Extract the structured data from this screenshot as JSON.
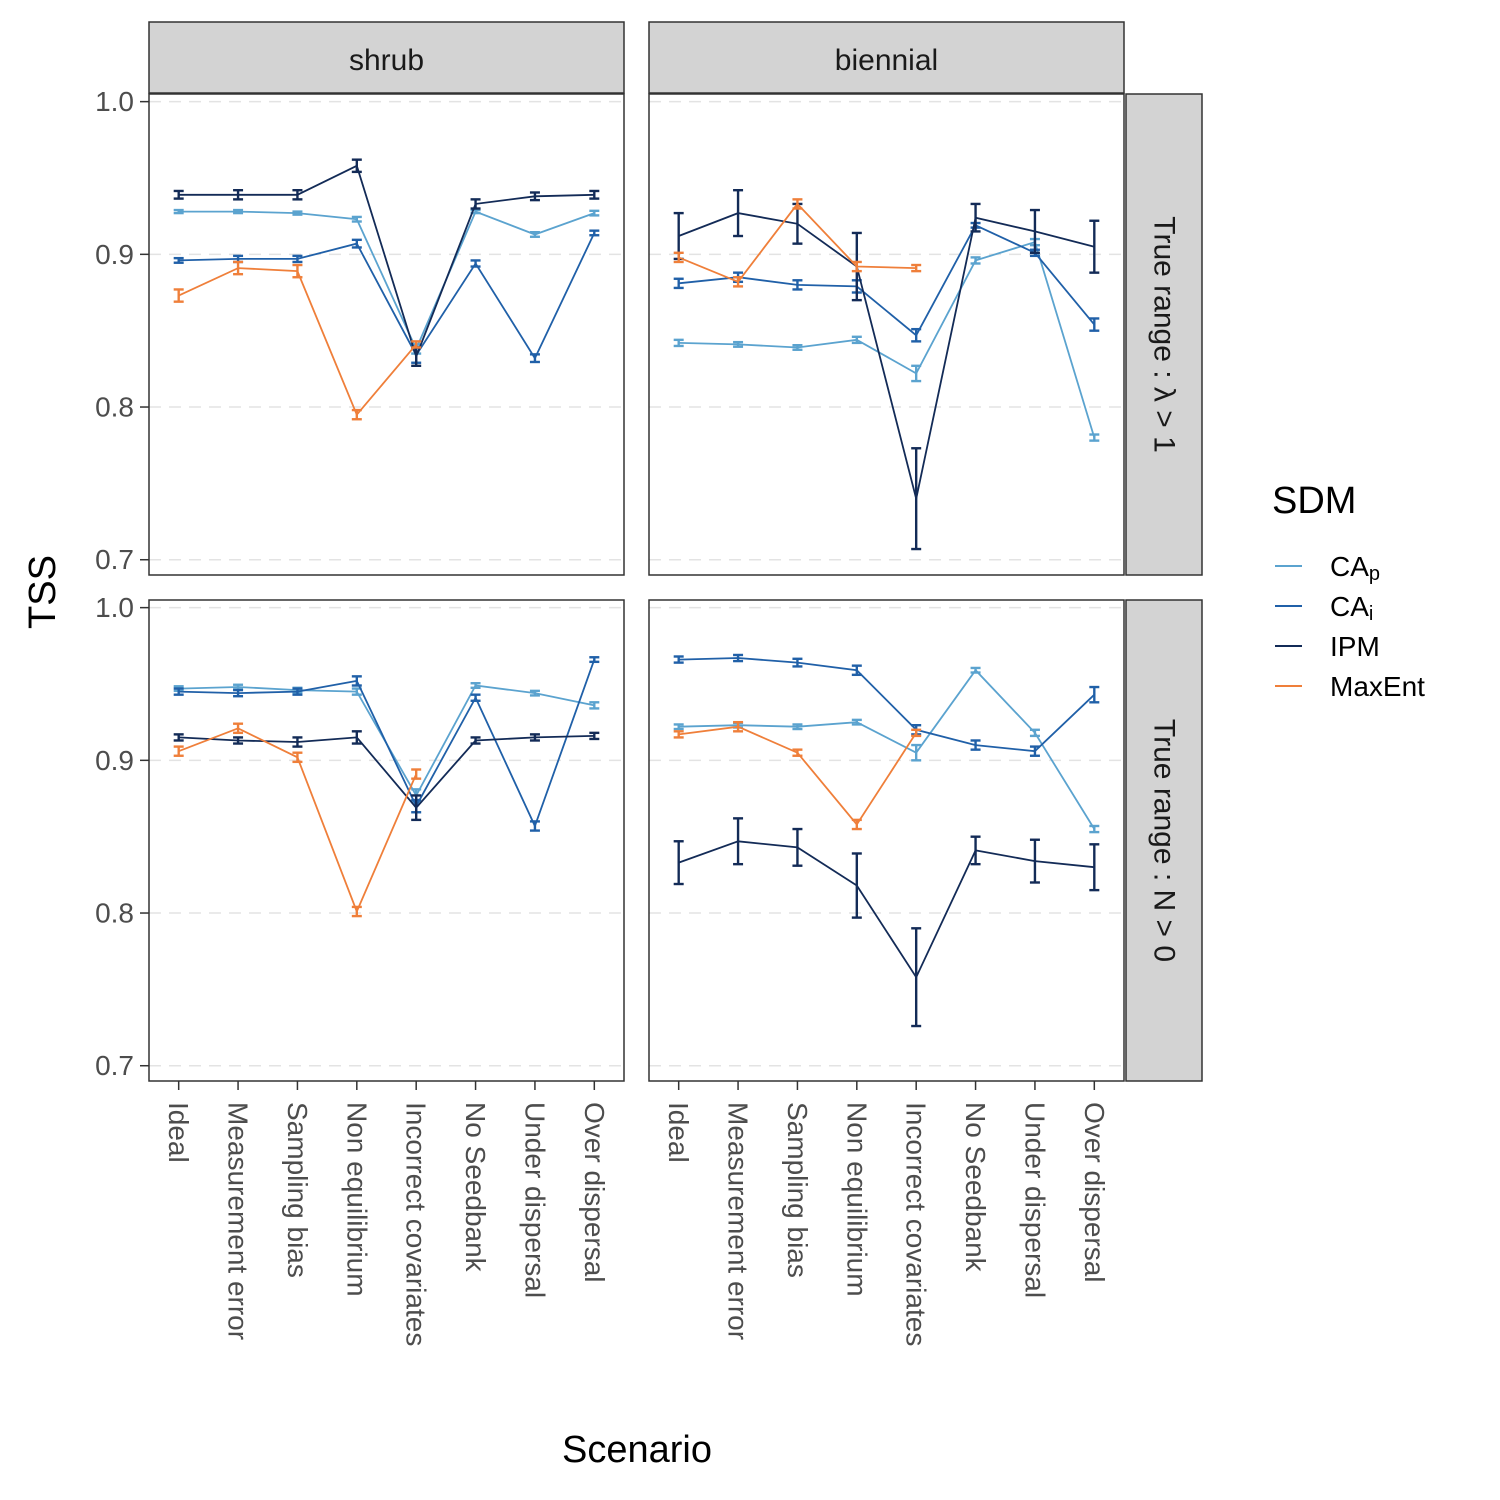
{
  "chart_data": {
    "type": "line",
    "xlabel": "Scenario",
    "ylabel": "TSS",
    "ylim": [
      0.69,
      1.005
    ],
    "y_ticks": [
      "0.7",
      "0.8",
      "0.9",
      "1.0"
    ],
    "categories": [
      "Ideal",
      "Measurement error",
      "Sampling bias",
      "Non equilibrium",
      "Incorrect covariates",
      "No Seedbank",
      "Under dispersal",
      "Over dispersal"
    ],
    "grid": "horizontal dashed",
    "legend": {
      "title": "SDM",
      "position": "right",
      "entries": [
        {
          "key": "CAp",
          "base": "CA",
          "sub": "p",
          "color": "#5ba3cf"
        },
        {
          "key": "CAi",
          "base": "CA",
          "sub": "i",
          "color": "#2060a8"
        },
        {
          "key": "IPM",
          "base": "IPM",
          "sub": "",
          "color": "#132b57"
        },
        {
          "key": "MaxEnt",
          "base": "MaxEnt",
          "sub": "",
          "color": "#ef7f3a"
        }
      ]
    },
    "columns": [
      "shrub",
      "biennial"
    ],
    "rows": [
      "True range : λ > 1",
      "True range : N > 0"
    ],
    "panels": [
      {
        "column": "shrub",
        "row": "True range : λ > 1",
        "series": [
          {
            "name": "CAp",
            "values": [
              0.928,
              0.928,
              0.927,
              0.923,
              0.838,
              0.928,
              0.913,
              0.927
            ],
            "errors": [
              0.001,
              0.001,
              0.001,
              0.0015,
              0.003,
              0.001,
              0.0015,
              0.0015
            ]
          },
          {
            "name": "CAi",
            "values": [
              0.896,
              0.897,
              0.897,
              0.907,
              0.834,
              0.894,
              0.832,
              0.914
            ],
            "errors": [
              0.0015,
              0.002,
              0.002,
              0.0025,
              0.005,
              0.002,
              0.0025,
              0.0015
            ]
          },
          {
            "name": "IPM",
            "values": [
              0.939,
              0.939,
              0.939,
              0.958,
              0.833,
              0.933,
              0.938,
              0.939
            ],
            "errors": [
              0.0025,
              0.003,
              0.003,
              0.004,
              0.006,
              0.003,
              0.0025,
              0.0025
            ]
          },
          {
            "name": "MaxEnt",
            "values": [
              0.873,
              0.891,
              0.889,
              0.795,
              0.841,
              null,
              null,
              null
            ],
            "errors": [
              0.004,
              0.004,
              0.004,
              0.003,
              0.002,
              null,
              null,
              null
            ]
          }
        ]
      },
      {
        "column": "biennial",
        "row": "True range : λ > 1",
        "series": [
          {
            "name": "CAp",
            "values": [
              0.842,
              0.841,
              0.839,
              0.844,
              0.822,
              0.896,
              0.908,
              0.78
            ],
            "errors": [
              0.002,
              0.0015,
              0.0015,
              0.002,
              0.005,
              0.002,
              0.002,
              0.002
            ]
          },
          {
            "name": "CAi",
            "values": [
              0.881,
              0.885,
              0.88,
              0.879,
              0.847,
              0.919,
              0.901,
              0.854
            ],
            "errors": [
              0.003,
              0.003,
              0.003,
              0.004,
              0.004,
              0.0015,
              0.002,
              0.004
            ]
          },
          {
            "name": "IPM",
            "values": [
              0.912,
              0.927,
              0.92,
              0.892,
              0.74,
              0.924,
              0.915,
              0.905
            ],
            "errors": [
              0.015,
              0.015,
              0.013,
              0.022,
              0.033,
              0.009,
              0.014,
              0.017
            ]
          },
          {
            "name": "MaxEnt",
            "values": [
              0.898,
              0.882,
              0.933,
              0.892,
              0.891,
              null,
              null,
              null
            ],
            "errors": [
              0.003,
              0.003,
              0.003,
              0.003,
              0.002,
              null,
              null,
              null
            ]
          }
        ]
      },
      {
        "column": "shrub",
        "row": "True range : N > 0",
        "series": [
          {
            "name": "CAp",
            "values": [
              0.947,
              0.948,
              0.946,
              0.945,
              0.877,
              0.949,
              0.944,
              0.936
            ],
            "errors": [
              0.0015,
              0.0015,
              0.0015,
              0.002,
              0.004,
              0.0015,
              0.0015,
              0.002
            ]
          },
          {
            "name": "CAi",
            "values": [
              0.945,
              0.944,
              0.945,
              0.952,
              0.87,
              0.941,
              0.857,
              0.966
            ],
            "errors": [
              0.002,
              0.002,
              0.002,
              0.003,
              0.004,
              0.002,
              0.003,
              0.0015
            ]
          },
          {
            "name": "IPM",
            "values": [
              0.915,
              0.913,
              0.912,
              0.915,
              0.869,
              0.913,
              0.915,
              0.916
            ],
            "errors": [
              0.002,
              0.002,
              0.003,
              0.004,
              0.008,
              0.002,
              0.002,
              0.002
            ]
          },
          {
            "name": "MaxEnt",
            "values": [
              0.906,
              0.921,
              0.902,
              0.801,
              0.891,
              null,
              null,
              null
            ],
            "errors": [
              0.003,
              0.003,
              0.003,
              0.003,
              0.003,
              null,
              null,
              null
            ]
          }
        ]
      },
      {
        "column": "biennial",
        "row": "True range : N > 0",
        "series": [
          {
            "name": "CAp",
            "values": [
              0.922,
              0.923,
              0.922,
              0.925,
              0.905,
              0.959,
              0.918,
              0.855
            ],
            "errors": [
              0.0015,
              0.0015,
              0.0015,
              0.0015,
              0.005,
              0.0015,
              0.002,
              0.002
            ]
          },
          {
            "name": "CAi",
            "values": [
              0.966,
              0.967,
              0.964,
              0.959,
              0.92,
              0.91,
              0.906,
              0.943
            ],
            "errors": [
              0.002,
              0.002,
              0.0025,
              0.003,
              0.003,
              0.003,
              0.003,
              0.005
            ]
          },
          {
            "name": "IPM",
            "values": [
              0.833,
              0.847,
              0.843,
              0.818,
              0.758,
              0.841,
              0.834,
              0.83
            ],
            "errors": [
              0.014,
              0.015,
              0.012,
              0.021,
              0.032,
              0.009,
              0.014,
              0.015
            ]
          },
          {
            "name": "MaxEnt",
            "values": [
              0.917,
              0.922,
              0.905,
              0.858,
              0.918,
              null,
              null,
              null
            ],
            "errors": [
              0.002,
              0.003,
              0.002,
              0.003,
              0.002,
              null,
              null,
              null
            ]
          }
        ]
      }
    ]
  }
}
